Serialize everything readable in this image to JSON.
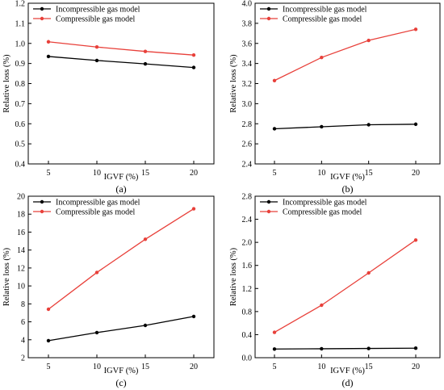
{
  "figure": {
    "panels": [
      {
        "label": "(a)"
      },
      {
        "label": "(b)"
      },
      {
        "label": "(c)"
      },
      {
        "label": "(d)"
      }
    ]
  },
  "chart_data": [
    {
      "type": "line",
      "panel": "(a)",
      "x": [
        5,
        10,
        15,
        20
      ],
      "xticks": [
        "5",
        "10",
        "15",
        "20"
      ],
      "xlabel": "IGVF (%)",
      "ylabel": "Relative loss (%)",
      "ylim": [
        0.4,
        1.2
      ],
      "yticks": [
        "0.4",
        "0.5",
        "0.6",
        "0.7",
        "0.8",
        "0.9",
        "1.0",
        "1.1",
        "1.2"
      ],
      "legend": "top-left",
      "grid": false,
      "series": [
        {
          "name": "Incompressible gas model",
          "color": "#000000",
          "values": [
            0.935,
            0.915,
            0.898,
            0.88
          ]
        },
        {
          "name": "Compressible gas model",
          "color": "#e8403a",
          "values": [
            1.008,
            0.982,
            0.96,
            0.942
          ]
        }
      ]
    },
    {
      "type": "line",
      "panel": "(b)",
      "x": [
        5,
        10,
        15,
        20
      ],
      "xticks": [
        "5",
        "10",
        "15",
        "20"
      ],
      "xlabel": "IGVF (%)",
      "ylabel": "Relative loss (%)",
      "ylim": [
        2.4,
        4.0
      ],
      "yticks": [
        "2.4",
        "2.6",
        "2.8",
        "3.0",
        "3.2",
        "3.4",
        "3.6",
        "3.8",
        "4.0"
      ],
      "legend": "top-left",
      "grid": false,
      "series": [
        {
          "name": "Incompressible gas model",
          "color": "#000000",
          "values": [
            2.75,
            2.77,
            2.79,
            2.795
          ]
        },
        {
          "name": "Compressible gas model",
          "color": "#e8403a",
          "values": [
            3.23,
            3.46,
            3.63,
            3.74
          ]
        }
      ]
    },
    {
      "type": "line",
      "panel": "(c)",
      "x": [
        5,
        10,
        15,
        20
      ],
      "xticks": [
        "5",
        "10",
        "15",
        "20"
      ],
      "xlabel": "IGVF (%)",
      "ylabel": "Relative loss (%)",
      "ylim": [
        2,
        20
      ],
      "yticks": [
        "2",
        "4",
        "6",
        "8",
        "10",
        "12",
        "14",
        "16",
        "18",
        "20"
      ],
      "legend": "top-left",
      "grid": false,
      "series": [
        {
          "name": "Incompressible gas model",
          "color": "#000000",
          "values": [
            3.9,
            4.8,
            5.6,
            6.6
          ]
        },
        {
          "name": "Compressible gas model",
          "color": "#e8403a",
          "values": [
            7.4,
            11.5,
            15.2,
            18.6
          ]
        }
      ]
    },
    {
      "type": "line",
      "panel": "(d)",
      "x": [
        5,
        10,
        15,
        20
      ],
      "xticks": [
        "5",
        "10",
        "15",
        "20"
      ],
      "xlabel": "IGVF (%)",
      "ylabel": "Relative loss (%)",
      "ylim": [
        0.0,
        2.8
      ],
      "yticks": [
        "0.0",
        "0.4",
        "0.8",
        "1.2",
        "1.6",
        "2.0",
        "2.4",
        "2.8"
      ],
      "legend": "top-left",
      "grid": false,
      "series": [
        {
          "name": "Incompressible gas model",
          "color": "#000000",
          "values": [
            0.15,
            0.155,
            0.16,
            0.165
          ]
        },
        {
          "name": "Compressible gas model",
          "color": "#e8403a",
          "values": [
            0.44,
            0.91,
            1.47,
            2.04
          ]
        }
      ]
    }
  ]
}
